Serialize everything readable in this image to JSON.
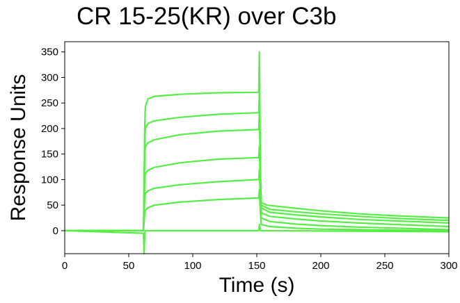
{
  "chart_data": {
    "type": "line",
    "title": "CR 15-25(KR) over C3b",
    "xlabel": "Time (s)",
    "ylabel": "Response Units",
    "xlim": [
      0,
      300
    ],
    "ylim": [
      -45,
      370
    ],
    "x_ticks": [
      0,
      50,
      100,
      150,
      200,
      250,
      300
    ],
    "y_ticks": [
      0,
      50,
      100,
      150,
      200,
      250,
      300,
      350
    ],
    "grid": false,
    "legend": "none",
    "line_color": "#55ee44",
    "injection_start": 62,
    "injection_end": 152,
    "series": [
      {
        "values": [
          [
            0,
            0
          ],
          [
            61.5,
            0
          ],
          [
            62.5,
            205
          ],
          [
            63,
            243
          ],
          [
            65,
            258
          ],
          [
            70,
            263
          ],
          [
            90,
            267
          ],
          [
            120,
            270
          ],
          [
            151.5,
            271
          ],
          [
            152,
            350
          ],
          [
            152.8,
            120
          ],
          [
            153.5,
            55
          ],
          [
            158,
            50
          ],
          [
            180,
            44
          ],
          [
            200,
            39
          ],
          [
            230,
            33
          ],
          [
            260,
            29
          ],
          [
            300,
            25
          ]
        ]
      },
      {
        "values": [
          [
            0,
            0
          ],
          [
            61.5,
            0
          ],
          [
            62.5,
            170
          ],
          [
            63,
            200
          ],
          [
            65,
            210
          ],
          [
            70,
            215
          ],
          [
            90,
            222
          ],
          [
            120,
            228
          ],
          [
            151.5,
            231
          ],
          [
            152,
            270
          ],
          [
            152.8,
            110
          ],
          [
            153.5,
            50
          ],
          [
            160,
            42
          ],
          [
            180,
            37
          ],
          [
            200,
            33
          ],
          [
            230,
            28
          ],
          [
            260,
            24
          ],
          [
            300,
            20
          ]
        ]
      },
      {
        "values": [
          [
            0,
            0
          ],
          [
            61.5,
            0
          ],
          [
            62.5,
            150
          ],
          [
            63,
            165
          ],
          [
            65,
            172
          ],
          [
            70,
            178
          ],
          [
            90,
            188
          ],
          [
            120,
            195
          ],
          [
            151.5,
            198
          ],
          [
            152,
            235
          ],
          [
            152.8,
            100
          ],
          [
            153.5,
            45
          ],
          [
            160,
            36
          ],
          [
            180,
            31
          ],
          [
            200,
            27
          ],
          [
            230,
            22
          ],
          [
            260,
            19
          ],
          [
            300,
            15
          ]
        ]
      },
      {
        "values": [
          [
            0,
            0
          ],
          [
            61.5,
            0
          ],
          [
            62.5,
            100
          ],
          [
            63,
            112
          ],
          [
            65,
            118
          ],
          [
            70,
            124
          ],
          [
            90,
            133
          ],
          [
            120,
            140
          ],
          [
            151.5,
            143
          ],
          [
            152,
            165
          ],
          [
            152.8,
            80
          ],
          [
            153.5,
            35
          ],
          [
            160,
            28
          ],
          [
            180,
            23
          ],
          [
            200,
            19
          ],
          [
            230,
            15
          ],
          [
            260,
            12
          ],
          [
            300,
            8
          ]
        ]
      },
      {
        "values": [
          [
            0,
            0
          ],
          [
            61.5,
            0
          ],
          [
            62.5,
            65
          ],
          [
            63,
            73
          ],
          [
            65,
            78
          ],
          [
            70,
            83
          ],
          [
            90,
            90
          ],
          [
            120,
            96
          ],
          [
            151.5,
            100
          ],
          [
            152,
            120
          ],
          [
            152.8,
            55
          ],
          [
            153.5,
            25
          ],
          [
            160,
            18
          ],
          [
            180,
            13
          ],
          [
            200,
            10
          ],
          [
            230,
            7
          ],
          [
            260,
            5
          ],
          [
            300,
            2
          ]
        ]
      },
      {
        "values": [
          [
            0,
            0
          ],
          [
            61.5,
            0
          ],
          [
            62.5,
            35
          ],
          [
            63,
            40
          ],
          [
            65,
            45
          ],
          [
            70,
            50
          ],
          [
            90,
            56
          ],
          [
            120,
            61
          ],
          [
            151.5,
            64
          ],
          [
            152,
            80
          ],
          [
            152.8,
            35
          ],
          [
            153.5,
            12
          ],
          [
            160,
            8
          ],
          [
            180,
            5
          ],
          [
            200,
            3
          ],
          [
            230,
            2
          ],
          [
            260,
            1
          ],
          [
            300,
            0
          ]
        ]
      },
      {
        "values": [
          [
            0,
            0
          ],
          [
            61.5,
            -5
          ],
          [
            62,
            -45
          ],
          [
            62.5,
            -5
          ],
          [
            63,
            0
          ],
          [
            150,
            0
          ],
          [
            151.5,
            0
          ],
          [
            152,
            12
          ],
          [
            153,
            0
          ],
          [
            300,
            -2
          ]
        ]
      }
    ]
  }
}
